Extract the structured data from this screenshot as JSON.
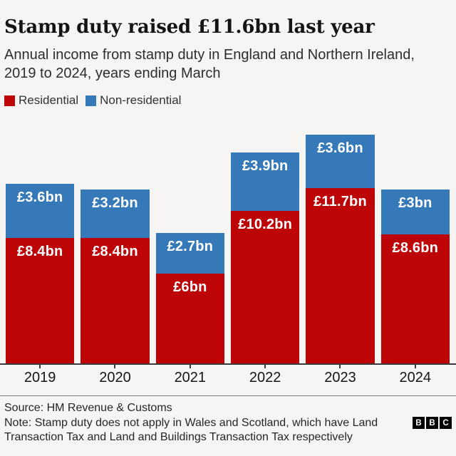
{
  "header": {
    "title": "Stamp duty raised £11.6bn last year",
    "subtitle": "Annual income from stamp duty in England and Northern Ireland, 2019 to 2024, years ending March"
  },
  "legend": {
    "items": [
      {
        "label": "Residential",
        "color": "#bd0508"
      },
      {
        "label": "Non-residential",
        "color": "#3579b8"
      }
    ]
  },
  "chart_data": {
    "type": "bar",
    "stacked": true,
    "title": "Stamp duty raised £11.6bn last year",
    "subtitle": "Annual income from stamp duty in England and Northern Ireland, 2019 to 2024, years ending March",
    "unit": "£bn",
    "categories": [
      "2019",
      "2020",
      "2021",
      "2022",
      "2023",
      "2024"
    ],
    "series": [
      {
        "name": "Residential",
        "color": "#bd0508",
        "values": [
          8.4,
          8.4,
          6,
          10.2,
          11.7,
          8.6
        ],
        "labels": [
          "£8.4bn",
          "£8.4bn",
          "£6bn",
          "£10.2bn",
          "£11.7bn",
          "£8.6bn"
        ]
      },
      {
        "name": "Non-residential",
        "color": "#3579b8",
        "values": [
          3.6,
          3.2,
          2.7,
          3.9,
          3.6,
          3
        ],
        "labels": [
          "£3.6bn",
          "£3.2bn",
          "£2.7bn",
          "£3.9bn",
          "£3.6bn",
          "£3bn"
        ]
      }
    ],
    "ylim": [
      0,
      17
    ],
    "grid": false,
    "legend_position": "top-left",
    "value_labels_inside": true
  },
  "footer": {
    "source": "Source: HM Revenue & Customs",
    "note_lines": [
      "Note: Stamp duty does not apply in Wales and Scotland, which have Land",
      "Transaction Tax and Land and Buildings Transaction Tax respectively"
    ]
  },
  "logo": {
    "letters": [
      "B",
      "B",
      "C"
    ]
  }
}
